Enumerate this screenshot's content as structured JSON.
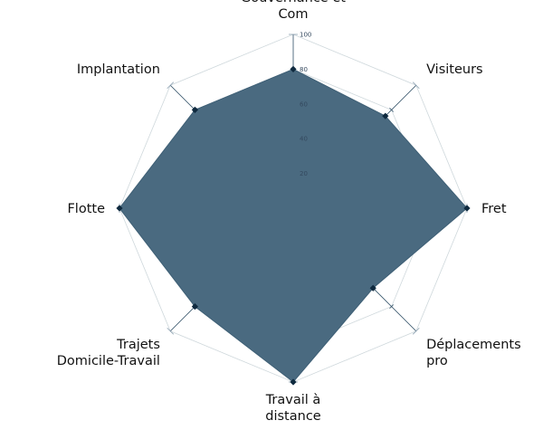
{
  "chart_data": {
    "type": "radar",
    "title": "",
    "axes": [
      {
        "label_lines": [
          "Gouvernance et",
          "Com"
        ],
        "value": 80
      },
      {
        "label_lines": [
          "Visiteurs"
        ],
        "value": 75
      },
      {
        "label_lines": [
          "Fret"
        ],
        "value": 100
      },
      {
        "label_lines": [
          "Déplacements",
          "pro"
        ],
        "value": 65
      },
      {
        "label_lines": [
          "Travail à",
          "distance"
        ],
        "value": 100
      },
      {
        "label_lines": [
          "Trajets",
          "Domicile-Travail"
        ],
        "value": 80
      },
      {
        "label_lines": [
          "Flotte"
        ],
        "value": 100
      },
      {
        "label_lines": [
          "Implantation"
        ],
        "value": 80
      }
    ],
    "scale": {
      "min": 0,
      "max": 100,
      "ticks": [
        20,
        40,
        60,
        80,
        100
      ]
    },
    "grid": true,
    "colors": {
      "area": "#4a6a80",
      "points": "#0f2a3f",
      "grid": "#cfd8dc",
      "spokes": "#2f4f66"
    }
  }
}
